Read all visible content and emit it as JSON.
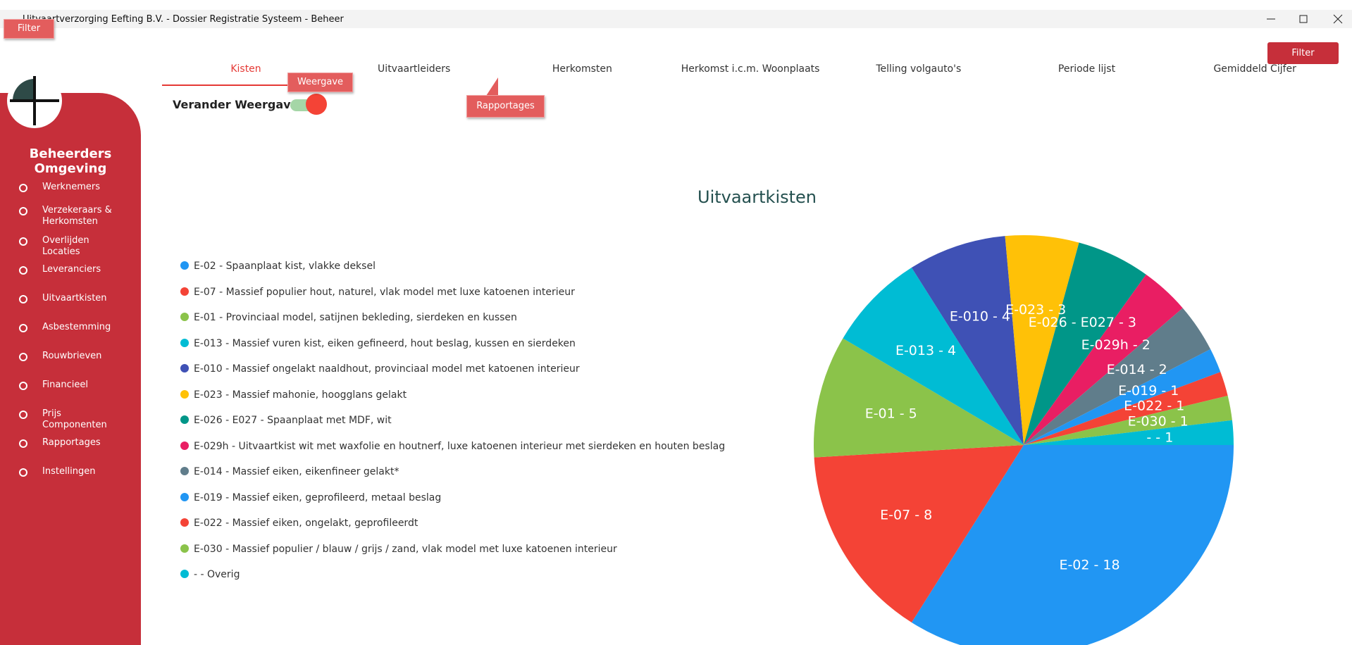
{
  "window": {
    "title": "Uitvaartverzorging Eefting B.V. - Dossier Registratie Systeem - Beheer"
  },
  "tooltips": {
    "filter": "Filter",
    "weergave": "Weergave",
    "rapportages": "Rapportages"
  },
  "sidebar": {
    "heading": "Beheerders Omgeving",
    "items": [
      "Werknemers",
      "Verzekeraars & Herkomsten",
      "Overlijden Locaties",
      "Leveranciers",
      "Uitvaartkisten",
      "Asbestemming",
      "Rouwbrieven",
      "Financieel",
      "Prijs Componenten",
      "Rapportages",
      "Instellingen"
    ]
  },
  "tabs": [
    "Kisten",
    "Uitvaartleiders",
    "Herkomsten",
    "Herkomst i.c.m. Woonplaats",
    "Telling volgauto's",
    "Periode lijst",
    "Gemiddeld Cijfer"
  ],
  "filter_button": "Filter",
  "toggle_label": "Verander Weergave",
  "chart_data": {
    "type": "pie",
    "title": "Uitvaartkisten",
    "categories": [
      "E-02 - Spaanplaat kist, vlakke deksel",
      "E-07 - Massief populier hout, naturel, vlak model met luxe katoenen interieur",
      "E-01 - Provinciaal model, satijnen bekleding, sierdeken en kussen",
      "E-013 - Massief vuren kist, eiken gefineerd, hout beslag, kussen en sierdeken",
      "E-010 - Massief ongelakt naaldhout, provinciaal model met katoenen interieur",
      "E-023 - Massief mahonie, hoogglans gelakt",
      "E-026 - E027 - Spaanplaat met MDF, wit",
      "E-029h - Uitvaartkist wit met waxfolie en houtnerf, luxe katoenen interieur met sierdeken en houten beslag",
      "E-014 - Massief eiken, eikenfineer gelakt*",
      "E-019 - Massief eiken, geprofileerd, metaal beslag",
      "E-022 - Massief eiken, ongelakt, geprofileerdt",
      "E-030 - Massief populier / blauw / grijs / zand, vlak model met luxe katoenen interieur",
      "- - Overig"
    ],
    "values": [
      18,
      8,
      5,
      4,
      4,
      3,
      3,
      2,
      2,
      1,
      1,
      1,
      1
    ],
    "value_labels": [
      "E-02 - 18",
      "E-07 - 8",
      "E-01 - 5",
      "E-013 - 4",
      "E-010 - 4",
      "E-023 - 3",
      "E-026 - E027 - 3",
      "E-029h - 2",
      "E-014 - 2",
      "E-019 - 1",
      "E-022 - 1",
      "E-030 - 1",
      "- - 1"
    ],
    "colors": [
      "#2196f3",
      "#f44336",
      "#8bc34a",
      "#00bcd4",
      "#3f51b5",
      "#ffc107",
      "#009688",
      "#e91e63",
      "#607d8b",
      "#2196f3",
      "#f44336",
      "#8bc34a",
      "#00bcd4"
    ]
  }
}
